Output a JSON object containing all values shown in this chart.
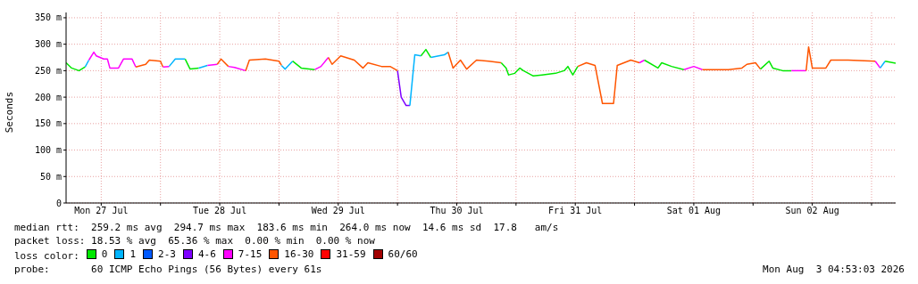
{
  "chart_data": {
    "type": "line",
    "ylabel": "Seconds",
    "legend_title": "loss color:",
    "legend": "bottom",
    "grid": true,
    "marker": "none",
    "line_style": "solid",
    "xlim": [
      "2026-07-27T04:53",
      "2026-08-03T04:53"
    ],
    "xticks": [
      {
        "value": "2026-07-27T12:00",
        "label": "Mon 27 Jul"
      },
      {
        "value": "2026-07-28T00:00",
        "label": null
      },
      {
        "value": "2026-07-28T12:00",
        "label": "Tue 28 Jul"
      },
      {
        "value": "2026-07-29T00:00",
        "label": null
      },
      {
        "value": "2026-07-29T12:00",
        "label": "Wed 29 Jul"
      },
      {
        "value": "2026-07-30T00:00",
        "label": null
      },
      {
        "value": "2026-07-30T12:00",
        "label": "Thu 30 Jul"
      },
      {
        "value": "2026-07-31T00:00",
        "label": null
      },
      {
        "value": "2026-07-31T12:00",
        "label": "Fri 31 Jul"
      },
      {
        "value": "2026-08-01T00:00",
        "label": null
      },
      {
        "value": "2026-08-01T12:00",
        "label": "Sat 01 Aug"
      },
      {
        "value": "2026-08-02T00:00",
        "label": null
      },
      {
        "value": "2026-08-02T12:00",
        "label": "Sun 02 Aug"
      },
      {
        "value": "2026-08-03T00:00",
        "label": null
      }
    ],
    "ylim": [
      0,
      360
    ],
    "yticks": [
      0,
      {
        "value": 50,
        "label": "50 m"
      },
      {
        "value": 100,
        "label": "100 m"
      },
      {
        "value": 150,
        "label": "150 m"
      },
      {
        "value": 200,
        "label": "200 m"
      },
      {
        "value": 250,
        "label": "250 m"
      },
      {
        "value": 300,
        "label": "300 m"
      },
      {
        "value": 350,
        "label": "350 m"
      }
    ],
    "series": [
      {
        "name": "0",
        "color": "#00e800",
        "x": [
          "2026-07-27T04:53",
          "2026-07-27T06:00",
          "2026-07-27T07:30",
          "2026-07-27T08:45"
        ],
        "values": [
          265,
          255,
          250,
          257
        ]
      },
      {
        "name": "1",
        "color": "#00b4ff",
        "x": [
          "2026-07-27T08:45",
          "2026-07-27T09:30"
        ],
        "values": [
          257,
          270
        ]
      },
      {
        "name": "2-3",
        "color": "#0059ff"
      },
      {
        "name": "4-6",
        "color": "#7e00ff",
        "x": [
          "2026-07-30T00:00",
          "2026-07-30T00:45",
          "2026-07-30T01:45",
          "2026-07-30T02:30"
        ],
        "values": [
          250,
          200,
          184,
          184
        ]
      },
      {
        "name": "7-15",
        "color": "#ff00ff",
        "x": [
          "2026-07-27T09:30",
          "2026-07-27T10:30",
          "2026-07-27T11:00",
          "2026-07-27T12:30",
          "2026-07-27T13:15",
          "2026-07-27T13:45",
          "2026-07-27T15:30",
          "2026-07-27T16:30",
          "2026-07-27T18:15",
          "2026-07-27T19:00"
        ],
        "values": [
          270,
          285,
          278,
          272,
          272,
          255,
          255,
          272,
          272,
          257
        ]
      },
      {
        "name": "16-30",
        "color": "#ff5500",
        "x": [
          "2026-07-27T19:00",
          "2026-07-27T21:00",
          "2026-07-27T21:45",
          "2026-07-28T00:00",
          "2026-07-28T00:30"
        ],
        "values": [
          257,
          262,
          270,
          268,
          257
        ]
      },
      {
        "name": "31-59",
        "color": "#ff0000"
      },
      {
        "name": "60/60",
        "color": "#a10000"
      },
      {
        "color": "#ff00ff",
        "x": [
          "2026-07-28T00:30",
          "2026-07-28T01:45"
        ],
        "values": [
          257,
          258
        ]
      },
      {
        "color": "#00b4ff",
        "x": [
          "2026-07-28T01:45",
          "2026-07-28T03:00",
          "2026-07-28T05:00"
        ],
        "values": [
          258,
          272,
          272
        ]
      },
      {
        "color": "#00e800",
        "x": [
          "2026-07-28T05:00",
          "2026-07-28T06:00",
          "2026-07-28T07:45"
        ],
        "values": [
          272,
          253,
          255
        ]
      },
      {
        "color": "#00b4ff",
        "x": [
          "2026-07-28T07:45",
          "2026-07-28T09:30"
        ],
        "values": [
          255,
          260
        ]
      },
      {
        "color": "#ff00ff",
        "x": [
          "2026-07-28T09:30",
          "2026-07-28T11:30"
        ],
        "values": [
          260,
          262
        ]
      },
      {
        "color": "#ff5500",
        "x": [
          "2026-07-28T11:30",
          "2026-07-28T12:15",
          "2026-07-28T13:45"
        ],
        "values": [
          262,
          272,
          258
        ]
      },
      {
        "color": "#ff00ff",
        "x": [
          "2026-07-28T13:45",
          "2026-07-28T15:00",
          "2026-07-28T17:15"
        ],
        "values": [
          258,
          256,
          250
        ]
      },
      {
        "color": "#ff5500",
        "x": [
          "2026-07-28T17:15",
          "2026-07-28T18:00",
          "2026-07-28T21:15",
          "2026-07-29T00:00",
          "2026-07-29T00:30"
        ],
        "values": [
          250,
          270,
          272,
          268,
          260
        ]
      },
      {
        "color": "#00b4ff",
        "x": [
          "2026-07-29T00:30",
          "2026-07-29T01:15",
          "2026-07-29T02:45"
        ],
        "values": [
          260,
          253,
          268
        ]
      },
      {
        "color": "#00e800",
        "x": [
          "2026-07-29T02:45",
          "2026-07-29T04:30",
          "2026-07-29T07:15"
        ],
        "values": [
          268,
          255,
          252
        ]
      },
      {
        "color": "#ff00ff",
        "x": [
          "2026-07-29T07:15",
          "2026-07-29T08:30",
          "2026-07-29T10:00"
        ],
        "values": [
          252,
          258,
          275
        ]
      },
      {
        "color": "#ff5500",
        "x": [
          "2026-07-29T10:00",
          "2026-07-29T10:45",
          "2026-07-29T12:30",
          "2026-07-29T15:15",
          "2026-07-29T17:00",
          "2026-07-29T18:00",
          "2026-07-29T20:45",
          "2026-07-29T22:30",
          "2026-07-30T00:00"
        ],
        "values": [
          275,
          262,
          278,
          270,
          255,
          265,
          258,
          258,
          250
        ]
      },
      {
        "color": "#00b4ff",
        "x": [
          "2026-07-30T02:30",
          "2026-07-30T03:30",
          "2026-07-30T04:45"
        ],
        "values": [
          184,
          280,
          278
        ]
      },
      {
        "color": "#00e800",
        "x": [
          "2026-07-30T04:45",
          "2026-07-30T05:45",
          "2026-07-30T06:45"
        ],
        "values": [
          278,
          290,
          275
        ]
      },
      {
        "color": "#00b4ff",
        "x": [
          "2026-07-30T06:45",
          "2026-07-30T09:30",
          "2026-07-30T10:15"
        ],
        "values": [
          275,
          280,
          285
        ]
      },
      {
        "color": "#ff5500",
        "x": [
          "2026-07-30T10:15",
          "2026-07-30T11:15",
          "2026-07-30T12:45",
          "2026-07-30T14:00",
          "2026-07-30T16:00",
          "2026-07-30T18:30",
          "2026-07-30T21:00"
        ],
        "values": [
          285,
          255,
          270,
          253,
          270,
          268,
          265
        ]
      },
      {
        "color": "#00e800",
        "x": [
          "2026-07-30T21:00",
          "2026-07-30T22:00",
          "2026-07-30T22:30",
          "2026-07-30T23:45",
          "2026-07-31T00:45",
          "2026-07-31T01:30",
          "2026-07-31T03:30",
          "2026-07-31T05:15",
          "2026-07-31T08:00",
          "2026-07-31T09:45",
          "2026-07-31T10:30",
          "2026-07-31T11:30",
          "2026-07-31T12:30"
        ],
        "values": [
          265,
          255,
          242,
          245,
          255,
          250,
          240,
          242,
          245,
          250,
          258,
          242,
          258
        ]
      },
      {
        "color": "#ff5500",
        "x": [
          "2026-07-31T12:30",
          "2026-07-31T14:15",
          "2026-07-31T16:00",
          "2026-07-31T17:30",
          "2026-07-31T19:45",
          "2026-07-31T20:30",
          "2026-07-31T23:15",
          "2026-08-01T01:00"
        ],
        "values": [
          258,
          265,
          260,
          188,
          188,
          260,
          270,
          265
        ]
      },
      {
        "color": "#ff00ff",
        "x": [
          "2026-08-01T01:00",
          "2026-08-01T02:00"
        ],
        "values": [
          265,
          270
        ]
      },
      {
        "color": "#00e800",
        "x": [
          "2026-08-01T02:00",
          "2026-08-01T04:45",
          "2026-08-01T05:30",
          "2026-08-01T07:30",
          "2026-08-01T10:00"
        ],
        "values": [
          270,
          255,
          265,
          258,
          252
        ]
      },
      {
        "color": "#ff00ff",
        "x": [
          "2026-08-01T10:00",
          "2026-08-01T12:00",
          "2026-08-01T13:45"
        ],
        "values": [
          252,
          258,
          252
        ]
      },
      {
        "color": "#ff5500",
        "x": [
          "2026-08-01T13:45",
          "2026-08-01T15:30",
          "2026-08-01T19:00",
          "2026-08-01T21:45",
          "2026-08-01T22:45",
          "2026-08-02T00:30",
          "2026-08-02T01:30"
        ],
        "values": [
          252,
          252,
          252,
          255,
          262,
          265,
          253
        ]
      },
      {
        "color": "#00e800",
        "x": [
          "2026-08-02T01:30",
          "2026-08-02T03:15",
          "2026-08-02T04:00",
          "2026-08-02T06:00",
          "2026-08-02T07:45"
        ],
        "values": [
          253,
          268,
          255,
          250,
          250
        ]
      },
      {
        "color": "#ff00ff",
        "x": [
          "2026-08-02T07:45",
          "2026-08-02T10:45"
        ],
        "values": [
          250,
          250
        ]
      },
      {
        "color": "#ff5500",
        "x": [
          "2026-08-02T10:45",
          "2026-08-02T11:15",
          "2026-08-02T12:00",
          "2026-08-02T14:45",
          "2026-08-02T15:45",
          "2026-08-02T19:15",
          "2026-08-03T00:45"
        ],
        "values": [
          250,
          295,
          255,
          255,
          270,
          270,
          268
        ]
      },
      {
        "color": "#ff00ff",
        "x": [
          "2026-08-03T00:45",
          "2026-08-03T01:45"
        ],
        "values": [
          268,
          255
        ]
      },
      {
        "color": "#00b4ff",
        "x": [
          "2026-08-03T01:45",
          "2026-08-03T02:45"
        ],
        "values": [
          255,
          268
        ]
      },
      {
        "color": "#00e800",
        "x": [
          "2026-08-03T02:45",
          "2026-08-03T04:53"
        ],
        "values": [
          268,
          264
        ]
      }
    ],
    "annotations": [
      "median rtt:  259.2 ms avg  294.7 ms max  183.6 ms min  264.0 ms now  14.6 ms sd  17.8   am/s",
      "packet loss: 18.53 % avg  65.36 % max  0.00 % min  0.00 % now",
      "probe:       60 ICMP Echo Pings (56 Bytes) every 61s",
      "Mon Aug  3 04:53:03 2026"
    ]
  }
}
